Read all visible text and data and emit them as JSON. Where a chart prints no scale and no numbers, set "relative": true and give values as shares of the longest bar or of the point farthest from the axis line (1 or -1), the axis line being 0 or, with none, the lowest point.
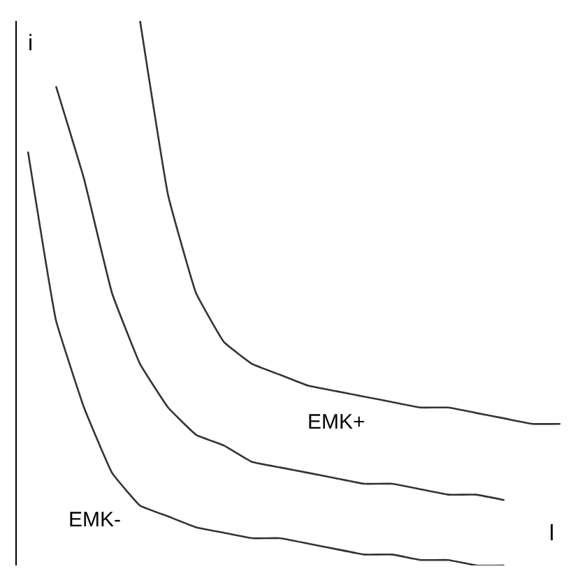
{
  "chart_data": {
    "type": "line",
    "relative": true,
    "xlabel": "l",
    "ylabel": "i",
    "categories": [
      null,
      null,
      null,
      null,
      null,
      null,
      null,
      null,
      null,
      null,
      null,
      null,
      null,
      null,
      null,
      null,
      null,
      null,
      null,
      null
    ],
    "series": [
      {
        "name": "EMK-",
        "color": "#333333",
        "values": [
          0.76,
          0.45,
          0.29,
          0.17,
          0.11,
          0.09,
          0.07,
          0.06,
          0.05,
          0.05,
          0.04,
          0.03,
          0.02,
          0.02,
          0.01,
          0.01,
          0.0,
          0.0,
          null,
          null
        ]
      },
      {
        "color": "#333333",
        "values": [
          null,
          0.88,
          0.71,
          0.5,
          0.37,
          0.29,
          0.24,
          0.22,
          0.19,
          0.18,
          0.17,
          0.16,
          0.15,
          0.15,
          0.14,
          0.13,
          0.13,
          0.12,
          null,
          null
        ]
      },
      {
        "name": "EMK+",
        "color": "#333333",
        "values": [
          null,
          null,
          null,
          null,
          1.0,
          0.68,
          0.5,
          0.41,
          0.37,
          0.35,
          0.33,
          0.32,
          0.31,
          0.3,
          0.29,
          0.29,
          0.28,
          0.27,
          0.26,
          0.26
        ]
      }
    ],
    "legend": false,
    "marker": "none",
    "line_style": "solid"
  }
}
